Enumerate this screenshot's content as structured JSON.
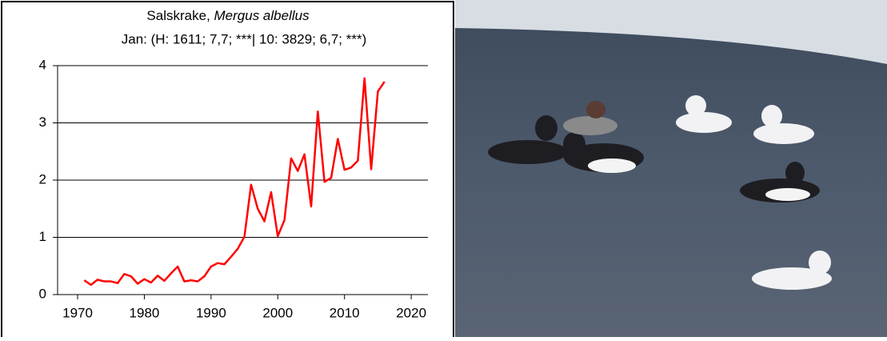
{
  "chart_data": {
    "type": "line",
    "title": "Salskrake, ",
    "title_species": "Mergus albellus",
    "subtitle": "Jan: (H: 1611; 7,7; ***| 10: 3829; 6,7; ***)",
    "x": [
      1971,
      1972,
      1973,
      1974,
      1975,
      1976,
      1977,
      1978,
      1979,
      1980,
      1981,
      1982,
      1983,
      1984,
      1985,
      1986,
      1987,
      1988,
      1989,
      1990,
      1991,
      1992,
      1993,
      1994,
      1995,
      1996,
      1997,
      1998,
      1999,
      2000,
      2001,
      2002,
      2003,
      2004,
      2005,
      2006,
      2007,
      2008,
      2009,
      2010,
      2011,
      2012,
      2013,
      2014,
      2015,
      2016
    ],
    "series": [
      {
        "color": "#ff0000",
        "values": [
          0.25,
          0.17,
          0.26,
          0.23,
          0.23,
          0.2,
          0.36,
          0.32,
          0.19,
          0.27,
          0.21,
          0.33,
          0.24,
          0.37,
          0.49,
          0.23,
          0.25,
          0.23,
          0.32,
          0.49,
          0.55,
          0.53,
          0.66,
          0.8,
          1.01,
          1.92,
          1.5,
          1.28,
          1.79,
          1.02,
          1.3,
          2.38,
          2.16,
          2.45,
          1.54,
          3.2,
          1.97,
          2.04,
          2.72,
          2.18,
          2.22,
          2.34,
          3.78,
          2.19,
          3.55,
          3.72
        ]
      }
    ],
    "xlim": [
      1967,
      2022.5
    ],
    "xticks": [
      1970,
      1980,
      1990,
      2000,
      2010,
      2020
    ],
    "ylim": [
      0,
      4
    ],
    "yticks": [
      0,
      1,
      2,
      3,
      4
    ],
    "grid": true
  }
}
